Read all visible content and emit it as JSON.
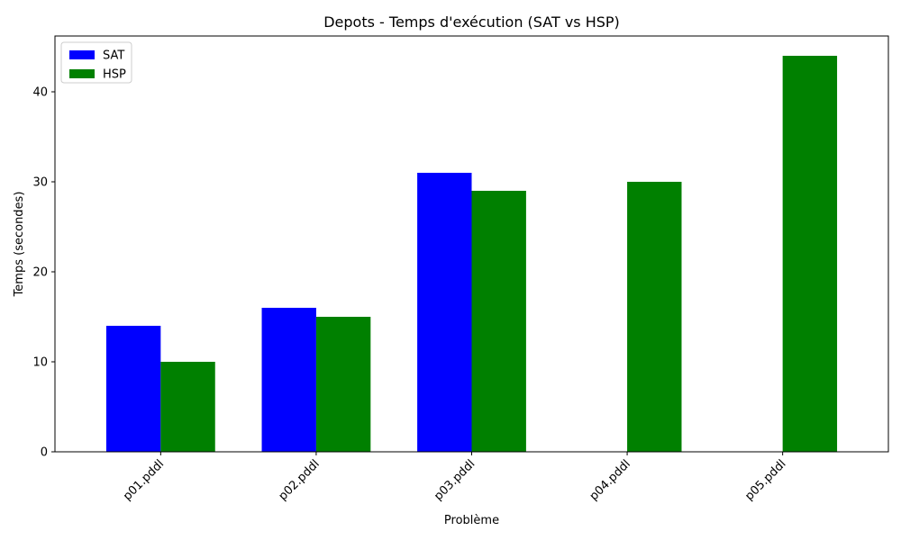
{
  "chart_data": {
    "type": "bar",
    "title": "Depots - Temps d'exécution (SAT vs HSP)",
    "xlabel": "Problème",
    "ylabel": "Temps (secondes)",
    "categories": [
      "p01.pddl",
      "p02.pddl",
      "p03.pddl",
      "p04.pddl",
      "p05.pddl"
    ],
    "series": [
      {
        "name": "SAT",
        "color": "#0000ff",
        "values": [
          14,
          16,
          31,
          null,
          null
        ]
      },
      {
        "name": "HSP",
        "color": "#008000",
        "values": [
          10,
          15,
          29,
          30,
          44
        ]
      }
    ],
    "ylim": [
      0,
      46.2
    ],
    "yticks": [
      0,
      10,
      20,
      30,
      40
    ],
    "grid": false,
    "legend_position": "top-left",
    "xtick_rotation": 45
  }
}
